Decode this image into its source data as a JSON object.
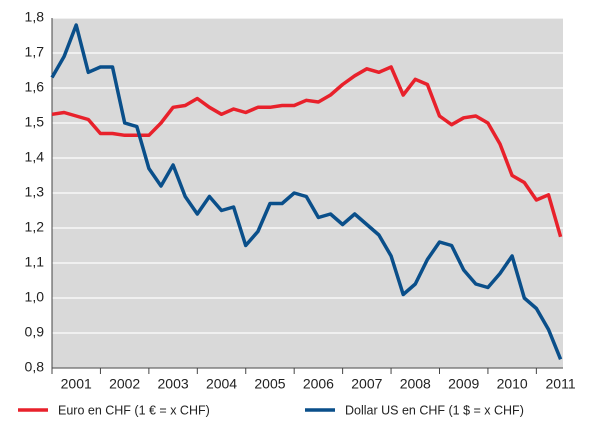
{
  "chart_data": {
    "type": "line",
    "x": [
      2001.0,
      2001.25,
      2001.5,
      2001.75,
      2002.0,
      2002.25,
      2002.5,
      2002.75,
      2003.0,
      2003.25,
      2003.5,
      2003.75,
      2004.0,
      2004.25,
      2004.5,
      2004.75,
      2005.0,
      2005.25,
      2005.5,
      2005.75,
      2006.0,
      2006.25,
      2006.5,
      2006.75,
      2007.0,
      2007.25,
      2007.5,
      2007.75,
      2008.0,
      2008.25,
      2008.5,
      2008.75,
      2009.0,
      2009.25,
      2009.5,
      2009.75,
      2010.0,
      2010.25,
      2010.5,
      2010.75,
      2011.0,
      2011.25,
      2011.5
    ],
    "series": [
      {
        "name": "Euro en CHF (1 € = x CHF)",
        "color": "#e8212b",
        "values": [
          1.525,
          1.53,
          1.52,
          1.51,
          1.47,
          1.47,
          1.465,
          1.465,
          1.465,
          1.5,
          1.545,
          1.55,
          1.57,
          1.545,
          1.525,
          1.54,
          1.53,
          1.545,
          1.545,
          1.55,
          1.55,
          1.565,
          1.56,
          1.58,
          1.61,
          1.635,
          1.655,
          1.645,
          1.66,
          1.58,
          1.625,
          1.61,
          1.52,
          1.495,
          1.515,
          1.52,
          1.5,
          1.44,
          1.35,
          1.33,
          1.28,
          1.295,
          1.175
        ]
      },
      {
        "name": "Dollar US en CHF (1 $ = x CHF)",
        "color": "#0a4f8a",
        "values": [
          1.63,
          1.69,
          1.78,
          1.645,
          1.66,
          1.66,
          1.5,
          1.49,
          1.37,
          1.32,
          1.38,
          1.29,
          1.24,
          1.29,
          1.25,
          1.26,
          1.15,
          1.19,
          1.27,
          1.27,
          1.3,
          1.29,
          1.23,
          1.24,
          1.21,
          1.24,
          1.21,
          1.18,
          1.12,
          1.01,
          1.04,
          1.11,
          1.16,
          1.15,
          1.08,
          1.04,
          1.03,
          1.07,
          1.12,
          1.0,
          0.97,
          0.91,
          0.825
        ]
      }
    ],
    "xlim": [
      2001,
      2011.55
    ],
    "xticks": [
      2001,
      2002,
      2003,
      2004,
      2005,
      2006,
      2007,
      2008,
      2009,
      2010,
      2011
    ],
    "ylim": [
      0.8,
      1.8
    ],
    "yticks": [
      {
        "value": 0.8,
        "label": "0,8"
      },
      {
        "value": 0.9,
        "label": "0,9"
      },
      {
        "value": 1.0,
        "label": "1,0"
      },
      {
        "value": 1.1,
        "label": "1,1"
      },
      {
        "value": 1.2,
        "label": "1,2"
      },
      {
        "value": 1.3,
        "label": "1,3"
      },
      {
        "value": 1.4,
        "label": "1,4"
      },
      {
        "value": 1.5,
        "label": "1,5"
      },
      {
        "value": 1.6,
        "label": "1,6"
      },
      {
        "value": 1.7,
        "label": "1,7"
      },
      {
        "value": 1.8,
        "label": "1,8"
      }
    ],
    "grid": true
  }
}
